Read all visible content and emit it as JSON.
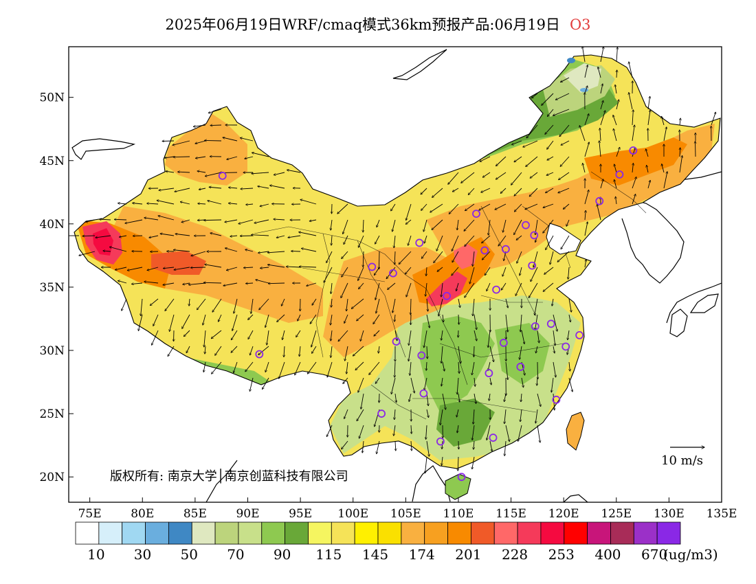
{
  "title": {
    "text": "2025年06月19日WRF/cmaq模式36km预报产品:06月19日",
    "pollutant": "O3"
  },
  "map": {
    "lat_labels": [
      "50N",
      "45N",
      "40N",
      "35N",
      "30N",
      "25N",
      "20N"
    ],
    "lon_labels": [
      "75E",
      "80E",
      "85E",
      "90E",
      "95E",
      "100E",
      "105E",
      "110E",
      "115E",
      "120E",
      "125E",
      "130E",
      "135E"
    ],
    "extent": {
      "lon_min": 73,
      "lon_max": 135,
      "lat_min": 18,
      "lat_max": 54
    },
    "copyright": "版权所有: 南京大学│南京创蓝科技有限公司",
    "wind_reference": "10 m/s"
  },
  "colorbar": {
    "colors": [
      "#ffffff",
      "#d6effa",
      "#a0d8f2",
      "#6aaede",
      "#3f88c4",
      "#dfe8c0",
      "#bcd47c",
      "#c8e08a",
      "#8ec950",
      "#69a838",
      "#f5f560",
      "#f5e358",
      "#fff000",
      "#fae000",
      "#f9b040",
      "#f7a020",
      "#f88a00",
      "#f05a28",
      "#ff6868",
      "#f53a5a",
      "#f50a40",
      "#ff0000",
      "#c8157a",
      "#a82c58",
      "#9b30c8",
      "#8a28e6"
    ],
    "labels": [
      "10",
      "30",
      "50",
      "70",
      "90",
      "115",
      "145",
      "174",
      "201",
      "228",
      "253",
      "400",
      "670"
    ],
    "unit": "(ug/m3)"
  },
  "stations": [
    {
      "lon": 87.6,
      "lat": 43.8
    },
    {
      "lon": 101.8,
      "lat": 36.6
    },
    {
      "lon": 103.8,
      "lat": 36.1
    },
    {
      "lon": 106.3,
      "lat": 38.5
    },
    {
      "lon": 111.7,
      "lat": 40.8
    },
    {
      "lon": 112.5,
      "lat": 37.9
    },
    {
      "lon": 114.5,
      "lat": 38.0
    },
    {
      "lon": 116.4,
      "lat": 39.9
    },
    {
      "lon": 117.2,
      "lat": 39.1
    },
    {
      "lon": 123.4,
      "lat": 41.8
    },
    {
      "lon": 125.3,
      "lat": 43.9
    },
    {
      "lon": 126.6,
      "lat": 45.8
    },
    {
      "lon": 117.0,
      "lat": 36.7
    },
    {
      "lon": 113.6,
      "lat": 34.8
    },
    {
      "lon": 108.9,
      "lat": 34.3
    },
    {
      "lon": 117.3,
      "lat": 31.9
    },
    {
      "lon": 118.8,
      "lat": 32.1
    },
    {
      "lon": 121.5,
      "lat": 31.2
    },
    {
      "lon": 120.2,
      "lat": 30.3
    },
    {
      "lon": 114.3,
      "lat": 30.6
    },
    {
      "lon": 106.5,
      "lat": 29.6
    },
    {
      "lon": 104.1,
      "lat": 30.7
    },
    {
      "lon": 112.9,
      "lat": 28.2
    },
    {
      "lon": 115.9,
      "lat": 28.7
    },
    {
      "lon": 106.7,
      "lat": 26.6
    },
    {
      "lon": 102.7,
      "lat": 25.0
    },
    {
      "lon": 119.3,
      "lat": 26.1
    },
    {
      "lon": 108.3,
      "lat": 22.8
    },
    {
      "lon": 113.3,
      "lat": 23.1
    },
    {
      "lon": 110.3,
      "lat": 20.0
    },
    {
      "lon": 91.1,
      "lat": 29.7
    }
  ]
}
